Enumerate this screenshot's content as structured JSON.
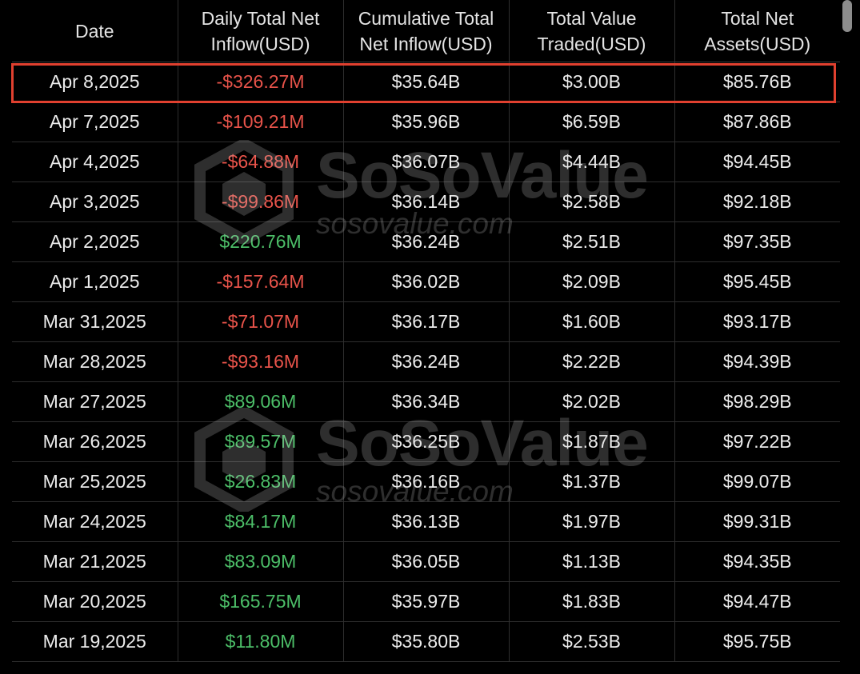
{
  "table": {
    "headers": {
      "date": "Date",
      "daily_net_inflow": "Daily Total Net Inflow(USD)",
      "cumulative_net_inflow": "Cumulative Total Net Inflow(USD)",
      "total_value_traded": "Total Value Traded(USD)",
      "total_net_assets": "Total Net Assets(USD)"
    },
    "rows": [
      {
        "date": "Apr 8,2025",
        "daily": "-$326.27M",
        "cumulative": "$35.64B",
        "traded": "$3.00B",
        "assets": "$85.76B"
      },
      {
        "date": "Apr 7,2025",
        "daily": "-$109.21M",
        "cumulative": "$35.96B",
        "traded": "$6.59B",
        "assets": "$87.86B"
      },
      {
        "date": "Apr 4,2025",
        "daily": "-$64.88M",
        "cumulative": "$36.07B",
        "traded": "$4.44B",
        "assets": "$94.45B"
      },
      {
        "date": "Apr 3,2025",
        "daily": "-$99.86M",
        "cumulative": "$36.14B",
        "traded": "$2.58B",
        "assets": "$92.18B"
      },
      {
        "date": "Apr 2,2025",
        "daily": "$220.76M",
        "cumulative": "$36.24B",
        "traded": "$2.51B",
        "assets": "$97.35B"
      },
      {
        "date": "Apr 1,2025",
        "daily": "-$157.64M",
        "cumulative": "$36.02B",
        "traded": "$2.09B",
        "assets": "$95.45B"
      },
      {
        "date": "Mar 31,2025",
        "daily": "-$71.07M",
        "cumulative": "$36.17B",
        "traded": "$1.60B",
        "assets": "$93.17B"
      },
      {
        "date": "Mar 28,2025",
        "daily": "-$93.16M",
        "cumulative": "$36.24B",
        "traded": "$2.22B",
        "assets": "$94.39B"
      },
      {
        "date": "Mar 27,2025",
        "daily": "$89.06M",
        "cumulative": "$36.34B",
        "traded": "$2.02B",
        "assets": "$98.29B"
      },
      {
        "date": "Mar 26,2025",
        "daily": "$89.57M",
        "cumulative": "$36.25B",
        "traded": "$1.87B",
        "assets": "$97.22B"
      },
      {
        "date": "Mar 25,2025",
        "daily": "$26.83M",
        "cumulative": "$36.16B",
        "traded": "$1.37B",
        "assets": "$99.07B"
      },
      {
        "date": "Mar 24,2025",
        "daily": "$84.17M",
        "cumulative": "$36.13B",
        "traded": "$1.97B",
        "assets": "$99.31B"
      },
      {
        "date": "Mar 21,2025",
        "daily": "$83.09M",
        "cumulative": "$36.05B",
        "traded": "$1.13B",
        "assets": "$94.35B"
      },
      {
        "date": "Mar 20,2025",
        "daily": "$165.75M",
        "cumulative": "$35.97B",
        "traded": "$1.83B",
        "assets": "$94.47B"
      },
      {
        "date": "Mar 19,2025",
        "daily": "$11.80M",
        "cumulative": "$35.80B",
        "traded": "$2.53B",
        "assets": "$95.75B"
      }
    ],
    "highlighted_row": 0
  },
  "watermark": {
    "brand": "SoSoValue",
    "url": "sosovalue.com",
    "logo_icon": "sosovalue-logo-icon"
  },
  "colors": {
    "background": "#000000",
    "negative": "#e8534a",
    "positive": "#4cbe68",
    "highlight_border": "#e0402f"
  }
}
